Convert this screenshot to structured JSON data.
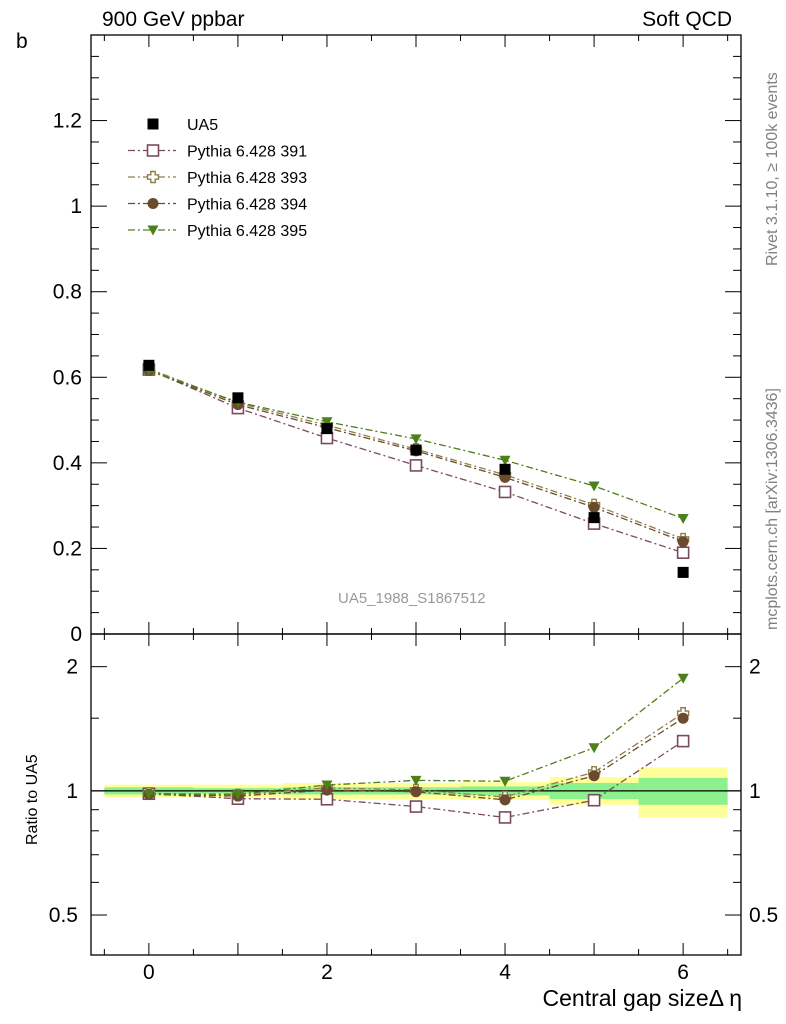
{
  "header": {
    "left": "900 GeV ppbar",
    "right": "Soft QCD"
  },
  "side_text": {
    "rivet": "Rivet 3.1.10, ≥ 100k events",
    "mcplots": "mcplots.cern.ch [arXiv:1306.3436]"
  },
  "analysis_tag": "UA5_1988_S1867512",
  "colors": {
    "s391": "#7a4a5e",
    "s393": "#8f7e4a",
    "s394": "#6b4a2e",
    "s395": "#4d7f1a",
    "band_outer": "#ffff99",
    "band_inner": "#8cf08c"
  },
  "chart_data": [
    {
      "type": "line",
      "xlabel": "",
      "ylabel": "b",
      "x_range": [
        -0.65,
        6.65
      ],
      "ylim": [
        0,
        1.4
      ],
      "y_ticks": [
        0,
        0.2,
        0.4,
        0.6,
        0.8,
        1,
        1.2
      ],
      "y_tick_labels": [
        "0",
        "0.2",
        "0.4",
        "0.6",
        "0.8",
        "1",
        "1.2"
      ],
      "legend_position": "top-left",
      "x": [
        0,
        1,
        2,
        3,
        4,
        5,
        6
      ],
      "series": [
        {
          "name": "UA5",
          "marker": "filled-square",
          "values": [
            0.628,
            0.552,
            0.48,
            0.43,
            0.385,
            0.272,
            0.144
          ]
        },
        {
          "name": "Pythia 6.428 391",
          "marker": "open-square",
          "values": [
            0.618,
            0.528,
            0.458,
            0.394,
            0.332,
            0.258,
            0.19
          ]
        },
        {
          "name": "Pythia 6.428 393",
          "marker": "open-cross",
          "values": [
            0.62,
            0.54,
            0.488,
            0.432,
            0.372,
            0.302,
            0.222
          ]
        },
        {
          "name": "Pythia 6.428 394",
          "marker": "filled-circle",
          "values": [
            0.616,
            0.536,
            0.482,
            0.428,
            0.366,
            0.296,
            0.216
          ]
        },
        {
          "name": "Pythia 6.428 395",
          "marker": "filled-triangle-down",
          "values": [
            0.616,
            0.542,
            0.496,
            0.456,
            0.406,
            0.346,
            0.27
          ]
        }
      ]
    },
    {
      "type": "line",
      "xlabel": "Central gap sizeΔ η",
      "ylabel": "Ratio to UA5",
      "x_range": [
        -0.65,
        6.65
      ],
      "ylim": [
        0.4,
        2.4
      ],
      "y_scale": "log",
      "y_ticks": [
        0.5,
        1,
        2
      ],
      "y_tick_labels": [
        "0.5",
        "1",
        "2"
      ],
      "x_ticks": [
        0,
        2,
        4,
        6
      ],
      "x_tick_labels": [
        "0",
        "2",
        "4",
        "6"
      ],
      "x": [
        0,
        1,
        2,
        3,
        4,
        5,
        6
      ],
      "uncertainty_bands": {
        "bins": [
          [
            -0.5,
            0.5
          ],
          [
            0.5,
            1.5
          ],
          [
            1.5,
            2.5
          ],
          [
            2.5,
            3.5
          ],
          [
            3.5,
            4.5
          ],
          [
            4.5,
            5.5
          ],
          [
            5.5,
            6.5
          ]
        ],
        "inner": [
          [
            0.98,
            1.02
          ],
          [
            0.985,
            1.015
          ],
          [
            0.98,
            1.02
          ],
          [
            0.98,
            1.02
          ],
          [
            0.975,
            1.025
          ],
          [
            0.955,
            1.045
          ],
          [
            0.925,
            1.075
          ]
        ],
        "outer": [
          [
            0.965,
            1.035
          ],
          [
            0.965,
            1.035
          ],
          [
            0.955,
            1.045
          ],
          [
            0.955,
            1.045
          ],
          [
            0.95,
            1.05
          ],
          [
            0.925,
            1.08
          ],
          [
            0.86,
            1.14
          ]
        ]
      },
      "series": [
        {
          "name": "Pythia 6.428 391",
          "values": [
            0.984,
            0.957,
            0.954,
            0.916,
            0.862,
            0.949,
            1.32
          ]
        },
        {
          "name": "Pythia 6.428 393",
          "values": [
            0.987,
            0.978,
            1.017,
            1.005,
            0.966,
            1.11,
            1.542
          ]
        },
        {
          "name": "Pythia 6.428 394",
          "values": [
            0.981,
            0.971,
            1.004,
            0.995,
            0.951,
            1.088,
            1.5
          ]
        },
        {
          "name": "Pythia 6.428 395",
          "values": [
            0.981,
            0.982,
            1.033,
            1.06,
            1.055,
            1.272,
            1.875
          ]
        }
      ]
    }
  ]
}
